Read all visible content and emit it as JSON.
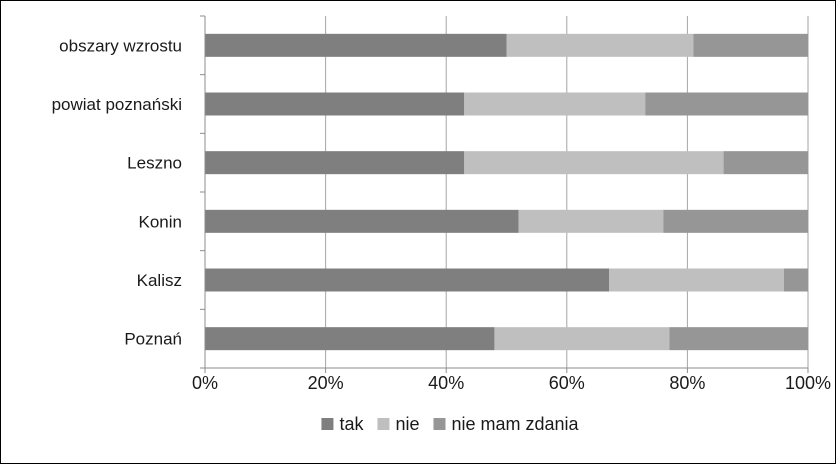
{
  "chart_data": {
    "type": "bar",
    "orientation": "horizontal",
    "stacked": true,
    "percent": true,
    "categories": [
      "obszary wzrostu",
      "powiat poznański",
      "Leszno",
      "Konin",
      "Kalisz",
      "Poznań"
    ],
    "series": [
      {
        "name": "tak",
        "color": "#7f7f7f",
        "values": [
          50,
          43,
          43,
          52,
          67,
          48
        ]
      },
      {
        "name": "nie",
        "color": "#bfbfbf",
        "values": [
          31,
          30,
          43,
          24,
          29,
          29
        ]
      },
      {
        "name": "nie mam zdania",
        "color": "#969696",
        "values": [
          19,
          27,
          14,
          24,
          4,
          23
        ]
      }
    ],
    "xlim": [
      0,
      100
    ],
    "xticks": [
      "0%",
      "20%",
      "40%",
      "60%",
      "80%",
      "100%"
    ],
    "grid": "vertical",
    "legend_position": "bottom",
    "title": "",
    "xlabel": "",
    "ylabel": ""
  }
}
